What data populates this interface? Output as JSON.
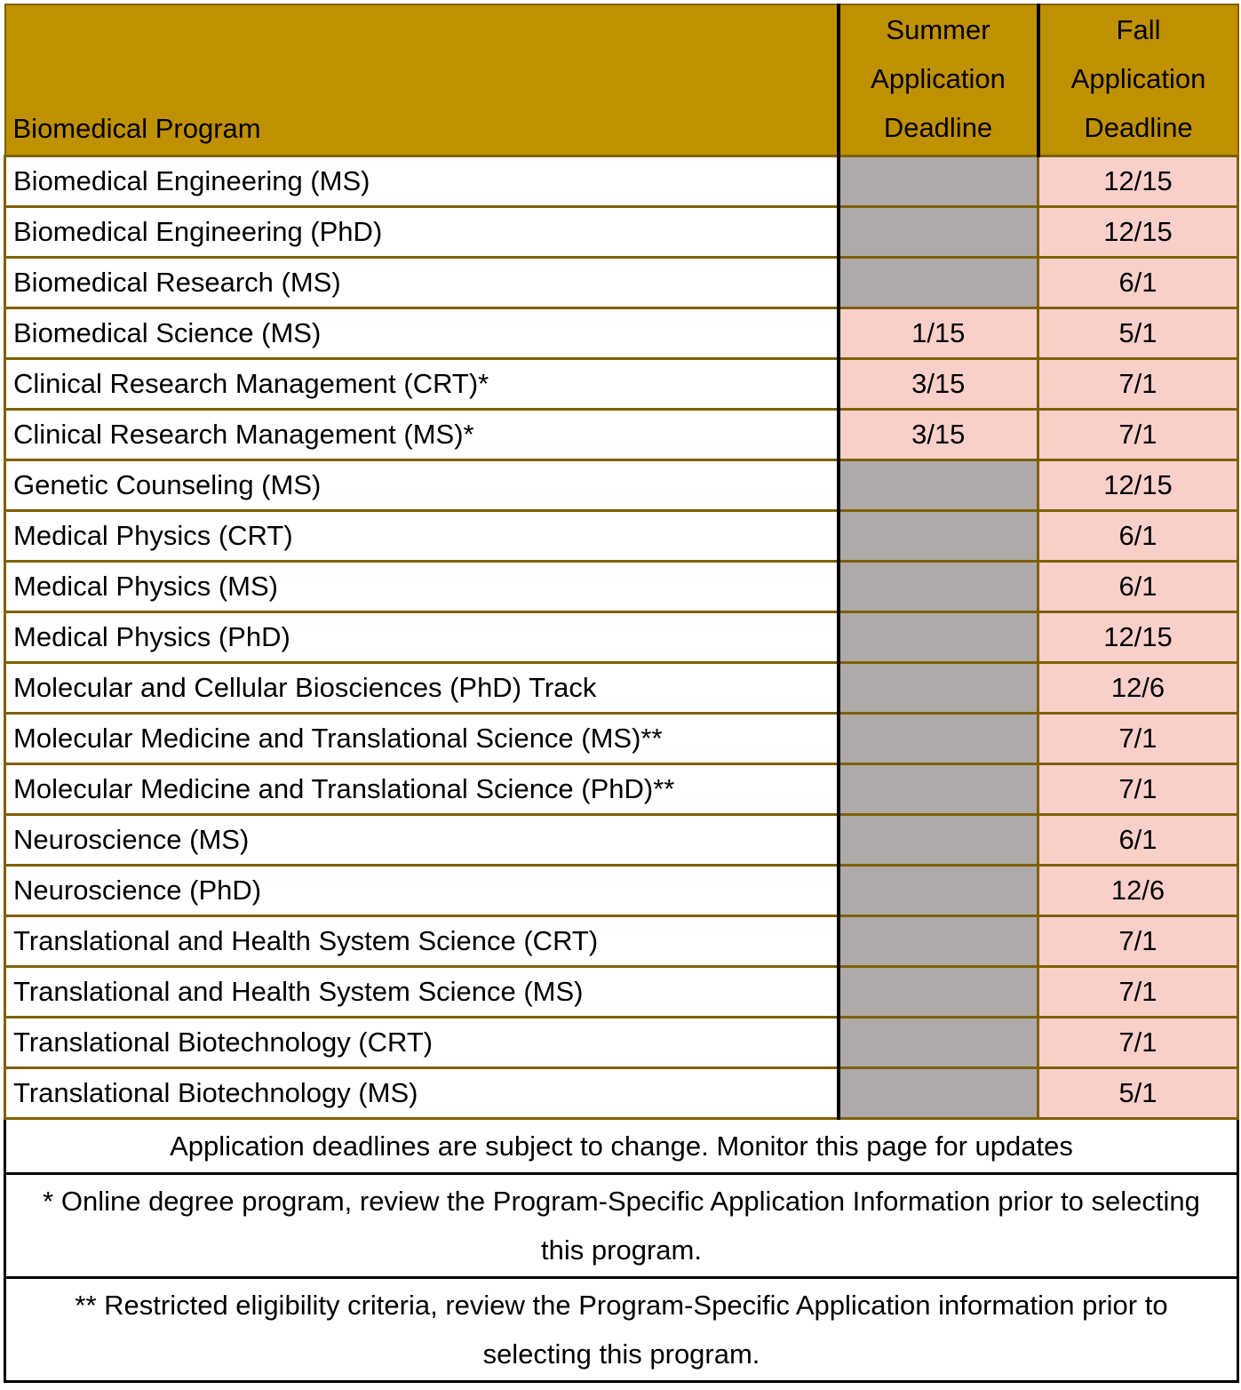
{
  "table": {
    "header": [
      "Biomedical Program",
      "Summer Application Deadline",
      "Fall Application Deadline"
    ],
    "rows": [
      [
        "Biomedical Engineering (MS)",
        null,
        "12/15"
      ],
      [
        "Biomedical Engineering (PhD)",
        null,
        "12/15"
      ],
      [
        "Biomedical Research (MS)",
        null,
        "6/1"
      ],
      [
        "Biomedical Science (MS)",
        "1/15",
        "5/1"
      ],
      [
        "Clinical Research Management (CRT)*",
        "3/15",
        "7/1"
      ],
      [
        "Clinical Research Management (MS)*",
        "3/15",
        "7/1"
      ],
      [
        "Genetic Counseling (MS)",
        null,
        "12/15"
      ],
      [
        "Medical Physics (CRT)",
        null,
        "6/1"
      ],
      [
        "Medical Physics (MS)",
        null,
        "6/1"
      ],
      [
        "Medical Physics (PhD)",
        null,
        "12/15"
      ],
      [
        "Molecular and Cellular Biosciences (PhD) Track",
        null,
        "12/6"
      ],
      [
        "Molecular Medicine and Translational Science (MS)**",
        null,
        "7/1"
      ],
      [
        "Molecular Medicine and Translational Science (PhD)**",
        null,
        "7/1"
      ],
      [
        "Neuroscience (MS)",
        null,
        "6/1"
      ],
      [
        "Neuroscience (PhD)",
        null,
        "12/6"
      ],
      [
        "Translational and Health System Science (CRT)",
        null,
        "7/1"
      ],
      [
        "Translational and Health System Science (MS)",
        null,
        "7/1"
      ],
      [
        "Translational Biotechnology (CRT)",
        null,
        "7/1"
      ],
      [
        "Translational Biotechnology (MS)",
        null,
        "5/1"
      ]
    ],
    "notes": [
      "Application deadlines are subject to change. Monitor this page for updates",
      "* Online degree program, review the Program-Specific Application Information prior to selecting this program.",
      "** Restricted eligibility criteria, review the Program-Specific Application information prior to selecting this program."
    ]
  }
}
